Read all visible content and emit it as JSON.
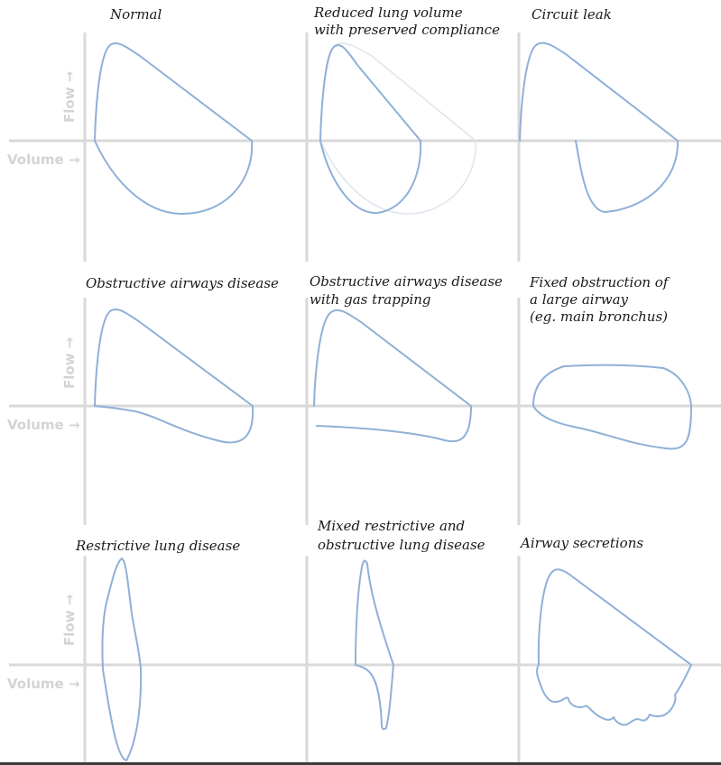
{
  "figure": {
    "axis_labels": {
      "flow": "Flow →",
      "volume": "Volume →"
    },
    "colors": {
      "loop": "#8fb0d7",
      "reference_loop": "#dfe6ee",
      "axis": "#d9d9d9",
      "axis_label": "#d4d4d4"
    },
    "panels": [
      {
        "id": "normal",
        "title_lines": [
          "Normal"
        ]
      },
      {
        "id": "reduced-volume",
        "title_lines": [
          "Reduced lung volume",
          "with preserved compliance"
        ]
      },
      {
        "id": "circuit-leak",
        "title_lines": [
          "Circuit leak"
        ]
      },
      {
        "id": "obstructive",
        "title_lines": [
          "Obstructive airways disease"
        ]
      },
      {
        "id": "obstructive-trapping",
        "title_lines": [
          "Obstructive airways disease",
          "with gas trapping"
        ]
      },
      {
        "id": "fixed-obstruction",
        "title_lines": [
          "Fixed obstruction of",
          "a large airway",
          "(eg. main bronchus)"
        ]
      },
      {
        "id": "restrictive",
        "title_lines": [
          "Restrictive lung disease"
        ]
      },
      {
        "id": "mixed",
        "title_lines": [
          "Mixed restrictive and",
          "obstructive lung disease"
        ]
      },
      {
        "id": "secretions",
        "title_lines": [
          "Airway secretions"
        ]
      }
    ]
  }
}
